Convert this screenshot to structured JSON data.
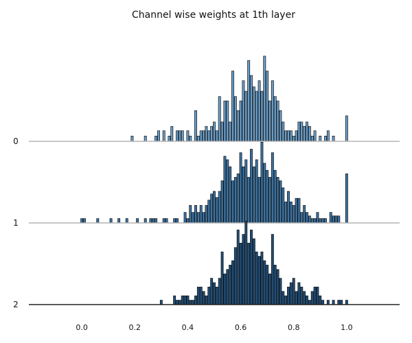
{
  "chart_data": {
    "type": "bar",
    "title": "Channel wise weights at 1th layer",
    "xlabel": "",
    "ylabel": "",
    "xlim": [
      -0.2,
      1.2
    ],
    "x_ticks": [
      "0.0",
      "0.2",
      "0.4",
      "0.6",
      "0.8",
      "1.0"
    ],
    "x_tick_values": [
      0.0,
      0.2,
      0.4,
      0.6,
      0.8,
      1.0
    ],
    "grid": false,
    "legend": "none",
    "series": [
      {
        "name": "0",
        "color": "#6a9ec9",
        "bins": [
          [
            0.19,
            0.06
          ],
          [
            0.24,
            0.06
          ],
          [
            0.28,
            0.06
          ],
          [
            0.29,
            0.12
          ],
          [
            0.31,
            0.12
          ],
          [
            0.33,
            0.06
          ],
          [
            0.34,
            0.17
          ],
          [
            0.36,
            0.12
          ],
          [
            0.37,
            0.12
          ],
          [
            0.38,
            0.12
          ],
          [
            0.4,
            0.12
          ],
          [
            0.41,
            0.06
          ],
          [
            0.43,
            0.06
          ],
          [
            0.43,
            0.35
          ],
          [
            0.44,
            0.06
          ],
          [
            0.45,
            0.12
          ],
          [
            0.46,
            0.12
          ],
          [
            0.47,
            0.17
          ],
          [
            0.48,
            0.12
          ],
          [
            0.49,
            0.17
          ],
          [
            0.5,
            0.22
          ],
          [
            0.51,
            0.12
          ],
          [
            0.52,
            0.51
          ],
          [
            0.53,
            0.22
          ],
          [
            0.54,
            0.46
          ],
          [
            0.55,
            0.46
          ],
          [
            0.56,
            0.22
          ],
          [
            0.57,
            0.8
          ],
          [
            0.58,
            0.51
          ],
          [
            0.59,
            0.35
          ],
          [
            0.6,
            0.46
          ],
          [
            0.61,
            0.69
          ],
          [
            0.62,
            0.57
          ],
          [
            0.63,
            0.92
          ],
          [
            0.64,
            0.75
          ],
          [
            0.65,
            0.62
          ],
          [
            0.66,
            0.57
          ],
          [
            0.67,
            0.69
          ],
          [
            0.68,
            0.57
          ],
          [
            0.69,
            0.97
          ],
          [
            0.7,
            0.8
          ],
          [
            0.71,
            0.46
          ],
          [
            0.72,
            0.69
          ],
          [
            0.73,
            0.51
          ],
          [
            0.74,
            0.46
          ],
          [
            0.75,
            0.35
          ],
          [
            0.76,
            0.22
          ],
          [
            0.77,
            0.12
          ],
          [
            0.78,
            0.12
          ],
          [
            0.79,
            0.12
          ],
          [
            0.8,
            0.06
          ],
          [
            0.81,
            0.12
          ],
          [
            0.82,
            0.22
          ],
          [
            0.83,
            0.22
          ],
          [
            0.84,
            0.17
          ],
          [
            0.85,
            0.22
          ],
          [
            0.86,
            0.17
          ],
          [
            0.87,
            0.06
          ],
          [
            0.88,
            0.12
          ],
          [
            0.9,
            0.06
          ],
          [
            0.92,
            0.06
          ],
          [
            0.93,
            0.12
          ],
          [
            0.95,
            0.06
          ],
          [
            1.0,
            0.29
          ]
        ]
      },
      {
        "name": "1",
        "color": "#3b73a3",
        "bins": [
          [
            0.0,
            0.05
          ],
          [
            0.01,
            0.05
          ],
          [
            0.06,
            0.05
          ],
          [
            0.11,
            0.05
          ],
          [
            0.14,
            0.05
          ],
          [
            0.17,
            0.05
          ],
          [
            0.21,
            0.05
          ],
          [
            0.24,
            0.05
          ],
          [
            0.26,
            0.05
          ],
          [
            0.27,
            0.05
          ],
          [
            0.28,
            0.05
          ],
          [
            0.31,
            0.05
          ],
          [
            0.32,
            0.05
          ],
          [
            0.35,
            0.05
          ],
          [
            0.36,
            0.05
          ],
          [
            0.39,
            0.12
          ],
          [
            0.4,
            0.05
          ],
          [
            0.41,
            0.2
          ],
          [
            0.42,
            0.12
          ],
          [
            0.43,
            0.2
          ],
          [
            0.44,
            0.12
          ],
          [
            0.45,
            0.2
          ],
          [
            0.46,
            0.12
          ],
          [
            0.47,
            0.2
          ],
          [
            0.48,
            0.26
          ],
          [
            0.49,
            0.33
          ],
          [
            0.5,
            0.36
          ],
          [
            0.51,
            0.29
          ],
          [
            0.52,
            0.36
          ],
          [
            0.53,
            0.48
          ],
          [
            0.54,
            0.76
          ],
          [
            0.55,
            0.72
          ],
          [
            0.56,
            0.64
          ],
          [
            0.57,
            0.48
          ],
          [
            0.58,
            0.52
          ],
          [
            0.59,
            0.56
          ],
          [
            0.6,
            0.8
          ],
          [
            0.61,
            0.64
          ],
          [
            0.62,
            0.72
          ],
          [
            0.63,
            0.52
          ],
          [
            0.64,
            0.84
          ],
          [
            0.65,
            0.64
          ],
          [
            0.66,
            0.72
          ],
          [
            0.67,
            0.52
          ],
          [
            0.68,
            0.92
          ],
          [
            0.69,
            0.68
          ],
          [
            0.7,
            0.6
          ],
          [
            0.71,
            0.52
          ],
          [
            0.72,
            0.8
          ],
          [
            0.73,
            0.6
          ],
          [
            0.74,
            0.52
          ],
          [
            0.75,
            0.48
          ],
          [
            0.76,
            0.4
          ],
          [
            0.77,
            0.24
          ],
          [
            0.78,
            0.36
          ],
          [
            0.79,
            0.24
          ],
          [
            0.8,
            0.2
          ],
          [
            0.81,
            0.28
          ],
          [
            0.82,
            0.28
          ],
          [
            0.83,
            0.12
          ],
          [
            0.84,
            0.2
          ],
          [
            0.85,
            0.12
          ],
          [
            0.86,
            0.08
          ],
          [
            0.87,
            0.05
          ],
          [
            0.88,
            0.05
          ],
          [
            0.89,
            0.12
          ],
          [
            0.9,
            0.05
          ],
          [
            0.91,
            0.05
          ],
          [
            0.92,
            0.05
          ],
          [
            0.94,
            0.12
          ],
          [
            0.95,
            0.08
          ],
          [
            0.96,
            0.08
          ],
          [
            0.97,
            0.08
          ],
          [
            1.0,
            0.56
          ]
        ]
      },
      {
        "name": "2",
        "color": "#1f4e79",
        "bins": [
          [
            0.3,
            0.05
          ],
          [
            0.35,
            0.1
          ],
          [
            0.36,
            0.05
          ],
          [
            0.37,
            0.05
          ],
          [
            0.38,
            0.1
          ],
          [
            0.39,
            0.1
          ],
          [
            0.4,
            0.1
          ],
          [
            0.41,
            0.05
          ],
          [
            0.42,
            0.05
          ],
          [
            0.43,
            0.1
          ],
          [
            0.44,
            0.2
          ],
          [
            0.45,
            0.2
          ],
          [
            0.46,
            0.15
          ],
          [
            0.47,
            0.1
          ],
          [
            0.48,
            0.2
          ],
          [
            0.49,
            0.3
          ],
          [
            0.5,
            0.25
          ],
          [
            0.51,
            0.2
          ],
          [
            0.52,
            0.3
          ],
          [
            0.53,
            0.6
          ],
          [
            0.54,
            0.35
          ],
          [
            0.55,
            0.4
          ],
          [
            0.56,
            0.45
          ],
          [
            0.57,
            0.5
          ],
          [
            0.58,
            0.65
          ],
          [
            0.59,
            0.85
          ],
          [
            0.6,
            0.7
          ],
          [
            0.61,
            0.8
          ],
          [
            0.62,
            0.95
          ],
          [
            0.63,
            0.7
          ],
          [
            0.64,
            0.85
          ],
          [
            0.65,
            0.75
          ],
          [
            0.66,
            0.6
          ],
          [
            0.67,
            0.55
          ],
          [
            0.68,
            0.6
          ],
          [
            0.69,
            0.5
          ],
          [
            0.7,
            0.45
          ],
          [
            0.71,
            0.35
          ],
          [
            0.72,
            0.8
          ],
          [
            0.73,
            0.45
          ],
          [
            0.74,
            0.4
          ],
          [
            0.75,
            0.3
          ],
          [
            0.76,
            0.15
          ],
          [
            0.77,
            0.1
          ],
          [
            0.78,
            0.2
          ],
          [
            0.79,
            0.25
          ],
          [
            0.8,
            0.3
          ],
          [
            0.81,
            0.15
          ],
          [
            0.82,
            0.25
          ],
          [
            0.83,
            0.2
          ],
          [
            0.84,
            0.15
          ],
          [
            0.85,
            0.1
          ],
          [
            0.86,
            0.05
          ],
          [
            0.87,
            0.15
          ],
          [
            0.88,
            0.2
          ],
          [
            0.89,
            0.2
          ],
          [
            0.9,
            0.1
          ],
          [
            0.91,
            0.05
          ],
          [
            0.93,
            0.05
          ],
          [
            0.95,
            0.05
          ],
          [
            0.97,
            0.05
          ],
          [
            0.98,
            0.05
          ],
          [
            1.0,
            0.05
          ]
        ]
      }
    ]
  }
}
